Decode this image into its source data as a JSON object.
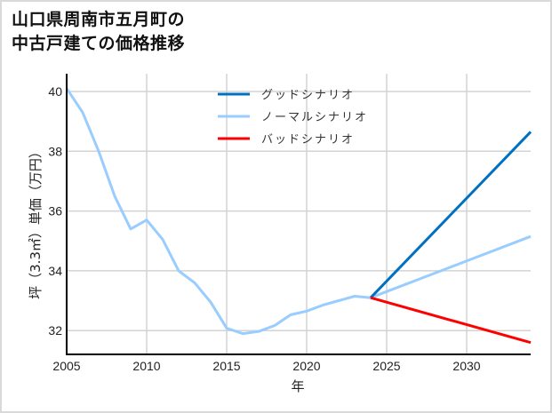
{
  "title": {
    "line1": "山口県周南市五月町の",
    "line2": "中古戸建ての価格推移"
  },
  "axes": {
    "xlabel": "年",
    "ylabel": "坪（3.3㎡）単価（万円）",
    "xticks": [
      "2005",
      "2010",
      "2015",
      "2020",
      "2025",
      "2030"
    ],
    "yticks": [
      "40",
      "38",
      "36",
      "34",
      "32"
    ]
  },
  "legend": {
    "items": [
      {
        "label": "グッドシナリオ",
        "color": "#0070c0"
      },
      {
        "label": "ノーマルシナリオ",
        "color": "#99ccff"
      },
      {
        "label": "バッドシナリオ",
        "color": "#ff0000"
      }
    ]
  },
  "chart_data": {
    "type": "line",
    "title": "山口県周南市五月町の中古戸建ての価格推移",
    "xlabel": "年",
    "ylabel": "坪（3.3㎡）単価（万円）",
    "xlim": [
      2005,
      2034
    ],
    "ylim": [
      31.2,
      40.6
    ],
    "grid": true,
    "legend_position": "upper center",
    "series": [
      {
        "name": "ノーマルシナリオ",
        "color": "#99ccff",
        "x": [
          2005,
          2006,
          2007,
          2008,
          2009,
          2010,
          2011,
          2012,
          2013,
          2014,
          2015,
          2016,
          2017,
          2018,
          2019,
          2020,
          2021,
          2022,
          2023,
          2024,
          2034
        ],
        "values": [
          40.1,
          39.3,
          38.0,
          36.5,
          35.4,
          35.7,
          35.05,
          34.0,
          33.6,
          32.95,
          32.08,
          31.9,
          31.97,
          32.17,
          32.53,
          32.65,
          32.85,
          33.0,
          33.15,
          33.1,
          35.15
        ]
      },
      {
        "name": "グッドシナリオ",
        "color": "#0070c0",
        "x": [
          2024,
          2034
        ],
        "values": [
          33.1,
          38.65
        ]
      },
      {
        "name": "バッドシナリオ",
        "color": "#ff0000",
        "x": [
          2024,
          2034
        ],
        "values": [
          33.1,
          31.6
        ]
      }
    ]
  }
}
